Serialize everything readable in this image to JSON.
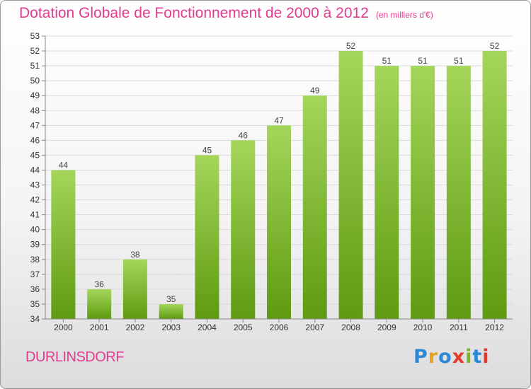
{
  "header": {
    "title": "Dotation Globale de Fonctionnement de 2000 à 2012",
    "subtitle": "(en milliers d'€)"
  },
  "footer": {
    "place": "DURLINSDORF",
    "logo_text": "Proxiti",
    "logo_colors": [
      "#2b8ad8",
      "#e8a21b",
      "#2b8ad8",
      "#e23b2e",
      "#78b82a",
      "#2b8ad8",
      "#e23b2e"
    ]
  },
  "colors": {
    "bar_top": "#a4d65a",
    "bar_bottom": "#5f9a12",
    "grid": "#d9d9d9",
    "title": "#e23b8f"
  },
  "chart_data": {
    "type": "bar",
    "title": "Dotation Globale de Fonctionnement de 2000 à 2012",
    "subtitle": "(en milliers d'€)",
    "xlabel": "",
    "ylabel": "",
    "categories": [
      "2000",
      "2001",
      "2002",
      "2003",
      "2004",
      "2005",
      "2006",
      "2007",
      "2008",
      "2009",
      "2010",
      "2011",
      "2012"
    ],
    "values": [
      44,
      36,
      38,
      35,
      45,
      46,
      47,
      49,
      52,
      51,
      51,
      51,
      52
    ],
    "ylim": [
      34,
      53
    ],
    "yticks": [
      34,
      35,
      36,
      37,
      38,
      39,
      40,
      41,
      42,
      43,
      44,
      45,
      46,
      47,
      48,
      49,
      50,
      51,
      52,
      53
    ],
    "grid": true,
    "data_labels": true
  }
}
